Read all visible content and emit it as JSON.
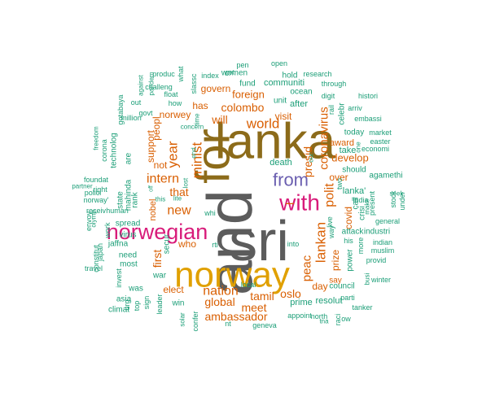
{
  "palette": {
    "gray": "#5c5c5c",
    "brown": "#8c6b1a",
    "gold": "#e0a000",
    "pink": "#d81b7a",
    "purple": "#6b5fb0",
    "orange": "#d95f02",
    "teal": "#1b9e77"
  },
  "words": [
    {
      "text": "and",
      "color": "gray"
    },
    {
      "text": "lanka",
      "color": "brown"
    },
    {
      "text": "sri",
      "color": "gray"
    },
    {
      "text": "for",
      "color": "brown"
    },
    {
      "text": "norway",
      "color": "gold"
    },
    {
      "text": "norwegian",
      "color": "pink"
    },
    {
      "text": "with",
      "color": "pink"
    },
    {
      "text": "from",
      "color": "purple"
    },
    {
      "text": "–",
      "color": "orange"
    },
    {
      "text": "world",
      "color": "orange"
    },
    {
      "text": "minist",
      "color": "orange"
    },
    {
      "text": "intern",
      "color": "orange"
    },
    {
      "text": "year",
      "color": "orange"
    },
    {
      "text": "new",
      "color": "orange"
    },
    {
      "text": "that",
      "color": "orange"
    },
    {
      "text": "nation",
      "color": "orange"
    },
    {
      "text": "lankan",
      "color": "orange"
    },
    {
      "text": "polit",
      "color": "orange"
    },
    {
      "text": "coronavirus",
      "color": "orange"
    },
    {
      "text": "presid",
      "color": "orange"
    },
    {
      "text": "peac",
      "color": "orange"
    },
    {
      "text": "oslo",
      "color": "orange"
    },
    {
      "text": "tamil",
      "color": "orange"
    },
    {
      "text": "meet",
      "color": "orange"
    },
    {
      "text": "ambassador",
      "color": "orange"
    },
    {
      "text": "global",
      "color": "orange"
    },
    {
      "text": "colombo",
      "color": "orange"
    },
    {
      "text": "will",
      "color": "orange"
    },
    {
      "text": "foreign",
      "color": "orange"
    },
    {
      "text": "has",
      "color": "orange"
    },
    {
      "text": "norwey",
      "color": "orange"
    },
    {
      "text": "govern",
      "color": "orange"
    },
    {
      "text": "visit",
      "color": "orange"
    },
    {
      "text": "develop",
      "color": "orange"
    },
    {
      "text": "over",
      "color": "orange"
    },
    {
      "text": "award",
      "color": "orange"
    },
    {
      "text": "day",
      "color": "orange"
    },
    {
      "text": "prize",
      "color": "orange"
    },
    {
      "text": "say",
      "color": "orange"
    },
    {
      "text": "first",
      "color": "orange"
    },
    {
      "text": "not",
      "color": "orange"
    },
    {
      "text": "who",
      "color": "orange"
    },
    {
      "text": "elect",
      "color": "orange"
    },
    {
      "text": "nobel",
      "color": "orange"
    },
    {
      "text": "support",
      "color": "orange"
    },
    {
      "text": "peopl",
      "color": "orange"
    },
    {
      "text": "covid",
      "color": "orange"
    },
    {
      "text": "secur",
      "color": "teal"
    },
    {
      "text": "death",
      "color": "teal"
    },
    {
      "text": "resolut",
      "color": "teal"
    },
    {
      "text": "prime",
      "color": "teal"
    },
    {
      "text": "council",
      "color": "teal"
    },
    {
      "text": "power",
      "color": "teal"
    },
    {
      "text": "more",
      "color": "teal"
    },
    {
      "text": "attack",
      "color": "teal"
    },
    {
      "text": "industri",
      "color": "teal"
    },
    {
      "text": "his",
      "color": "teal"
    },
    {
      "text": "lanka'",
      "color": "teal"
    },
    {
      "text": "call",
      "color": "teal"
    },
    {
      "text": "crisi",
      "color": "teal"
    },
    {
      "text": "india",
      "color": "teal"
    },
    {
      "text": "take",
      "color": "teal"
    },
    {
      "text": "should",
      "color": "teal"
    },
    {
      "text": "today",
      "color": "teal"
    },
    {
      "text": "celebr",
      "color": "teal"
    },
    {
      "text": "rail",
      "color": "teal"
    },
    {
      "text": "after",
      "color": "teal"
    },
    {
      "text": "unit",
      "color": "teal"
    },
    {
      "text": "ocean",
      "color": "teal"
    },
    {
      "text": "communiti",
      "color": "teal"
    },
    {
      "text": "fund",
      "color": "teal"
    },
    {
      "text": "women",
      "color": "teal"
    },
    {
      "text": "hold",
      "color": "teal"
    },
    {
      "text": "research",
      "color": "teal"
    },
    {
      "text": "through",
      "color": "teal"
    },
    {
      "text": "digit",
      "color": "teal"
    },
    {
      "text": "histori",
      "color": "teal"
    },
    {
      "text": "arriv",
      "color": "teal"
    },
    {
      "text": "embassi",
      "color": "teal"
    },
    {
      "text": "market",
      "color": "teal"
    },
    {
      "text": "easter",
      "color": "teal"
    },
    {
      "text": "economi",
      "color": "teal"
    },
    {
      "text": "agamethi",
      "color": "teal"
    },
    {
      "text": "seek",
      "color": "teal"
    },
    {
      "text": "stock",
      "color": "teal"
    },
    {
      "text": "under",
      "color": "teal"
    },
    {
      "text": "general",
      "color": "teal"
    },
    {
      "text": "indian",
      "color": "teal"
    },
    {
      "text": "muslim",
      "color": "teal"
    },
    {
      "text": "present",
      "color": "teal"
    },
    {
      "text": "provid",
      "color": "teal"
    },
    {
      "text": "make",
      "color": "teal"
    },
    {
      "text": "winter",
      "color": "teal"
    },
    {
      "text": "tanker",
      "color": "teal"
    },
    {
      "text": "parti",
      "color": "teal"
    },
    {
      "text": "busi",
      "color": "teal"
    },
    {
      "text": "north",
      "color": "teal"
    },
    {
      "text": "appoint",
      "color": "teal"
    },
    {
      "text": "tna",
      "color": "teal"
    },
    {
      "text": "raci",
      "color": "teal"
    },
    {
      "text": "ow",
      "color": "teal"
    },
    {
      "text": "way",
      "color": "teal"
    },
    {
      "text": "live",
      "color": "teal"
    },
    {
      "text": "two",
      "color": "teal"
    },
    {
      "text": "one",
      "color": "teal"
    },
    {
      "text": "our",
      "color": "teal"
    },
    {
      "text": "into",
      "color": "teal"
    },
    {
      "text": "local",
      "color": "teal"
    },
    {
      "text": "confer",
      "color": "teal"
    },
    {
      "text": "win",
      "color": "teal"
    },
    {
      "text": "war",
      "color": "teal"
    },
    {
      "text": "was",
      "color": "teal"
    },
    {
      "text": "asia",
      "color": "teal"
    },
    {
      "text": "climat",
      "color": "teal"
    },
    {
      "text": "most",
      "color": "teal"
    },
    {
      "text": "need",
      "color": "teal"
    },
    {
      "text": "jaffna",
      "color": "teal"
    },
    {
      "text": "virus",
      "color": "teal"
    },
    {
      "text": "spread",
      "color": "teal"
    },
    {
      "text": "human",
      "color": "teal"
    },
    {
      "text": "foundat",
      "color": "teal"
    },
    {
      "text": "polici",
      "color": "teal"
    },
    {
      "text": "partner",
      "color": "teal"
    },
    {
      "text": "norway'",
      "color": "teal"
    },
    {
      "text": "receiv",
      "color": "teal"
    },
    {
      "text": "work",
      "color": "teal"
    },
    {
      "text": "right",
      "color": "teal"
    },
    {
      "text": "travel",
      "color": "teal"
    },
    {
      "text": "constitut",
      "color": "teal"
    },
    {
      "text": "japan",
      "color": "teal"
    },
    {
      "text": "invest",
      "color": "teal"
    },
    {
      "text": "urg",
      "color": "teal"
    },
    {
      "text": "top",
      "color": "teal"
    },
    {
      "text": "sign",
      "color": "teal"
    },
    {
      "text": "leader",
      "color": "teal"
    },
    {
      "text": "solar",
      "color": "teal"
    },
    {
      "text": "nt",
      "color": "teal"
    },
    {
      "text": "geneva",
      "color": "teal"
    },
    {
      "text": "envoy",
      "color": "teal"
    },
    {
      "text": "olymp",
      "color": "teal"
    },
    {
      "text": "mahinda",
      "color": "teal"
    },
    {
      "text": "state",
      "color": "teal"
    },
    {
      "text": "rank",
      "color": "teal"
    },
    {
      "text": "are",
      "color": "teal"
    },
    {
      "text": "technolog",
      "color": "teal"
    },
    {
      "text": "corona",
      "color": "teal"
    },
    {
      "text": "freedom",
      "color": "teal"
    },
    {
      "text": "gotabaya",
      "color": "teal"
    },
    {
      "text": "million",
      "color": "teal"
    },
    {
      "text": "govt",
      "color": "teal"
    },
    {
      "text": "out",
      "color": "teal"
    },
    {
      "text": "challeng",
      "color": "teal"
    },
    {
      "text": "float",
      "color": "teal"
    },
    {
      "text": "how",
      "color": "teal"
    },
    {
      "text": "against",
      "color": "teal"
    },
    {
      "text": "pandem",
      "color": "teal"
    },
    {
      "text": "produc",
      "color": "teal"
    },
    {
      "text": "what",
      "color": "teal"
    },
    {
      "text": "slassc",
      "color": "teal"
    },
    {
      "text": "index",
      "color": "teal"
    },
    {
      "text": "get",
      "color": "teal"
    },
    {
      "text": "pen",
      "color": "teal"
    },
    {
      "text": "open",
      "color": "teal"
    },
    {
      "text": "concern",
      "color": "teal"
    },
    {
      "text": "end",
      "color": "teal"
    },
    {
      "text": "time",
      "color": "teal"
    },
    {
      "text": "off",
      "color": "teal"
    },
    {
      "text": "lost",
      "color": "teal"
    },
    {
      "text": "this",
      "color": "teal"
    },
    {
      "text": "lite",
      "color": "teal"
    },
    {
      "text": "whi",
      "color": "teal"
    },
    {
      "text": "rti",
      "color": "teal"
    },
    {
      "text": "set",
      "color": "teal"
    }
  ]
}
